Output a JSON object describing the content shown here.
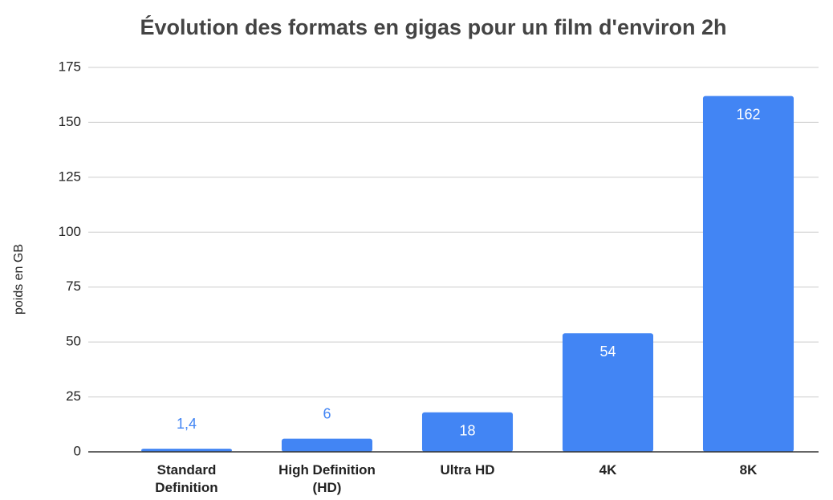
{
  "chart_data": {
    "type": "bar",
    "title": "Évolution des formats en gigas pour un film d'environ 2h",
    "y_axis_label": "poids en GB",
    "categories": [
      "Standard Definition",
      "High Definition (HD)",
      "Ultra HD",
      "4K",
      "8K"
    ],
    "values": [
      1.4,
      6,
      18,
      54,
      162
    ],
    "value_labels": [
      "1,4",
      "6",
      "18",
      "54",
      "162"
    ],
    "color": "#4285f4",
    "ylim": [
      0,
      175
    ],
    "yticks": [
      0,
      25,
      50,
      75,
      100,
      125,
      150,
      175
    ],
    "grid": true
  }
}
